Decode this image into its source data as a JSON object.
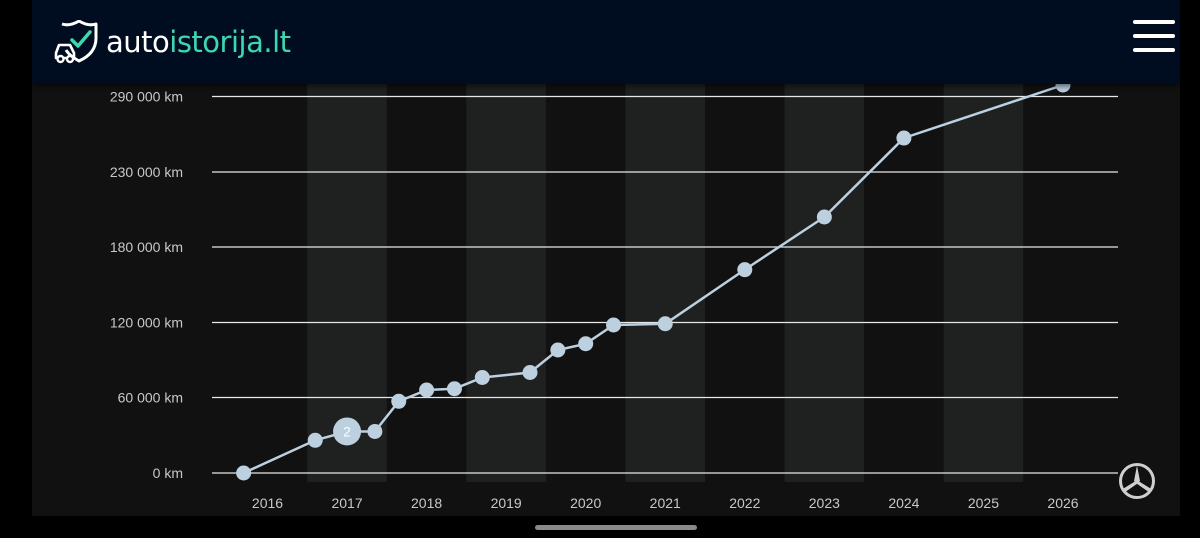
{
  "header": {
    "logo_text_part1": "auto",
    "logo_text_part2": "istorija.lt",
    "logo_icon": "car-shield-check-icon",
    "menu_icon": "hamburger-menu-icon",
    "background_color": "#000c1f",
    "accent_color": "#3dd8b0"
  },
  "brand_badge": {
    "icon": "mercedes-star-icon"
  },
  "chart_data": {
    "type": "line",
    "title": "",
    "xlabel": "",
    "ylabel": "",
    "x_categories": [
      "2016",
      "2017",
      "2018",
      "2019",
      "2020",
      "2021",
      "2022",
      "2023",
      "2024",
      "2025",
      "2026"
    ],
    "y_ticks": [
      {
        "value": 0,
        "label": "0 km"
      },
      {
        "value": 60000,
        "label": "60 000 km"
      },
      {
        "value": 120000,
        "label": "120 000 km"
      },
      {
        "value": 180000,
        "label": "180 000 km"
      },
      {
        "value": 230000,
        "label": "230 000 km"
      },
      {
        "value": 290000,
        "label": "290 000 km"
      }
    ],
    "grid": true,
    "alternating_year_bands": true,
    "line_color": "#bcd0e0",
    "series": [
      {
        "points": [
          {
            "x": 2015.7,
            "y": 0
          },
          {
            "x": 2016.6,
            "y": 26000
          },
          {
            "x": 2017.0,
            "y": 33000,
            "cluster_count": "2"
          },
          {
            "x": 2017.35,
            "y": 33000
          },
          {
            "x": 2017.65,
            "y": 57000
          },
          {
            "x": 2018.0,
            "y": 66000
          },
          {
            "x": 2018.35,
            "y": 67000
          },
          {
            "x": 2018.7,
            "y": 76000
          },
          {
            "x": 2019.3,
            "y": 80000
          },
          {
            "x": 2019.65,
            "y": 98000
          },
          {
            "x": 2020.0,
            "y": 103000
          },
          {
            "x": 2020.35,
            "y": 118000
          },
          {
            "x": 2021.0,
            "y": 119000
          },
          {
            "x": 2022.0,
            "y": 162000
          },
          {
            "x": 2023.0,
            "y": 200000
          },
          {
            "x": 2024.0,
            "y": 257000
          },
          {
            "x": 2026.0,
            "y": 310000
          }
        ]
      }
    ]
  }
}
